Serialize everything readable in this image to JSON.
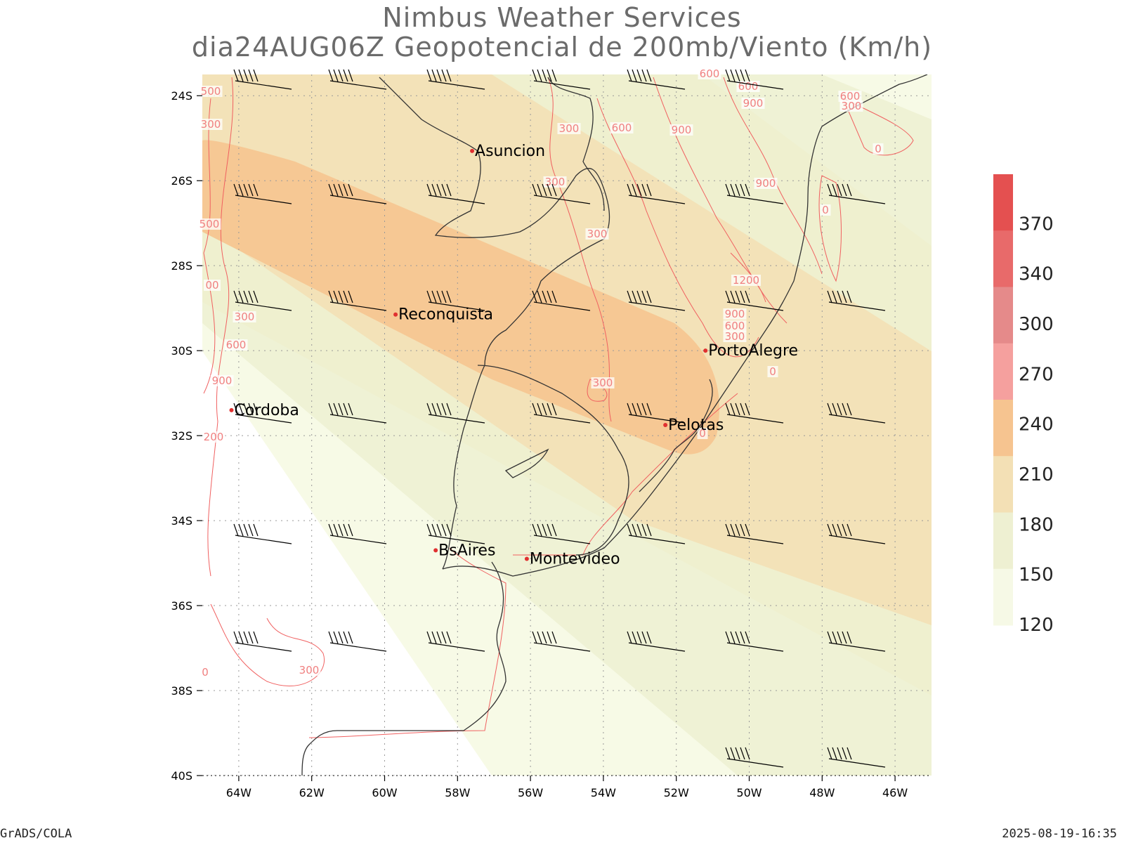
{
  "title": {
    "line1": "Nimbus Weather Services",
    "line2": "dia24AUG06Z Geopotencial de 200mb/Viento (Km/h)"
  },
  "map": {
    "lat_range": [
      -40,
      -23.5
    ],
    "lon_range": [
      -65,
      -45
    ],
    "lat_ticks": [
      "24S",
      "26S",
      "28S",
      "30S",
      "32S",
      "34S",
      "36S",
      "38S",
      "40S"
    ],
    "lon_ticks": [
      "64W",
      "62W",
      "60W",
      "58W",
      "56W",
      "54W",
      "52W",
      "50W",
      "48W",
      "46W"
    ],
    "cities": [
      {
        "name": "Asuncion",
        "lon": -57.6,
        "lat": -25.3
      },
      {
        "name": "Reconquista",
        "lon": -59.7,
        "lat": -29.15
      },
      {
        "name": "PortoAlegre",
        "lon": -51.2,
        "lat": -30.0
      },
      {
        "name": "Cordoba",
        "lon": -64.2,
        "lat": -31.4
      },
      {
        "name": "Pelotas",
        "lon": -52.3,
        "lat": -31.75
      },
      {
        "name": "BsAires",
        "lon": -58.6,
        "lat": -34.7
      },
      {
        "name": "Montevideo",
        "lon": -56.1,
        "lat": -34.9
      }
    ],
    "contour_labels": [
      "600",
      "600",
      "900",
      "300",
      "600",
      "900",
      "300",
      "300",
      "600",
      "300",
      "0",
      "900",
      "0",
      "1200",
      "900",
      "600",
      "300",
      "0",
      "300",
      "0",
      "300",
      "600",
      "900",
      "200",
      "300",
      "500",
      "300",
      "500",
      "00",
      "0"
    ],
    "wind_speed_bands": [
      {
        "min": 120,
        "max": 150,
        "color": "#f7fae6"
      },
      {
        "min": 150,
        "max": 180,
        "color": "#eff2d5"
      },
      {
        "min": 180,
        "max": 210,
        "color": "#f3e6bf"
      },
      {
        "min": 210,
        "max": 240,
        "color": "#f5c896"
      },
      {
        "min": 240,
        "max": 270,
        "color": "#f7a3a0"
      }
    ]
  },
  "colorbar": {
    "labels": [
      "370",
      "340",
      "300",
      "270",
      "240",
      "210",
      "180",
      "150",
      "120"
    ],
    "colors": [
      "#e45050",
      "#e86a6a",
      "#e58a8a",
      "#f5a09e",
      "#f6c490",
      "#f3e0b5",
      "#eef0d2",
      "#f6f9e6"
    ]
  },
  "footer": {
    "left": "GrADS/COLA",
    "right": "2025-08-19-16:35"
  }
}
